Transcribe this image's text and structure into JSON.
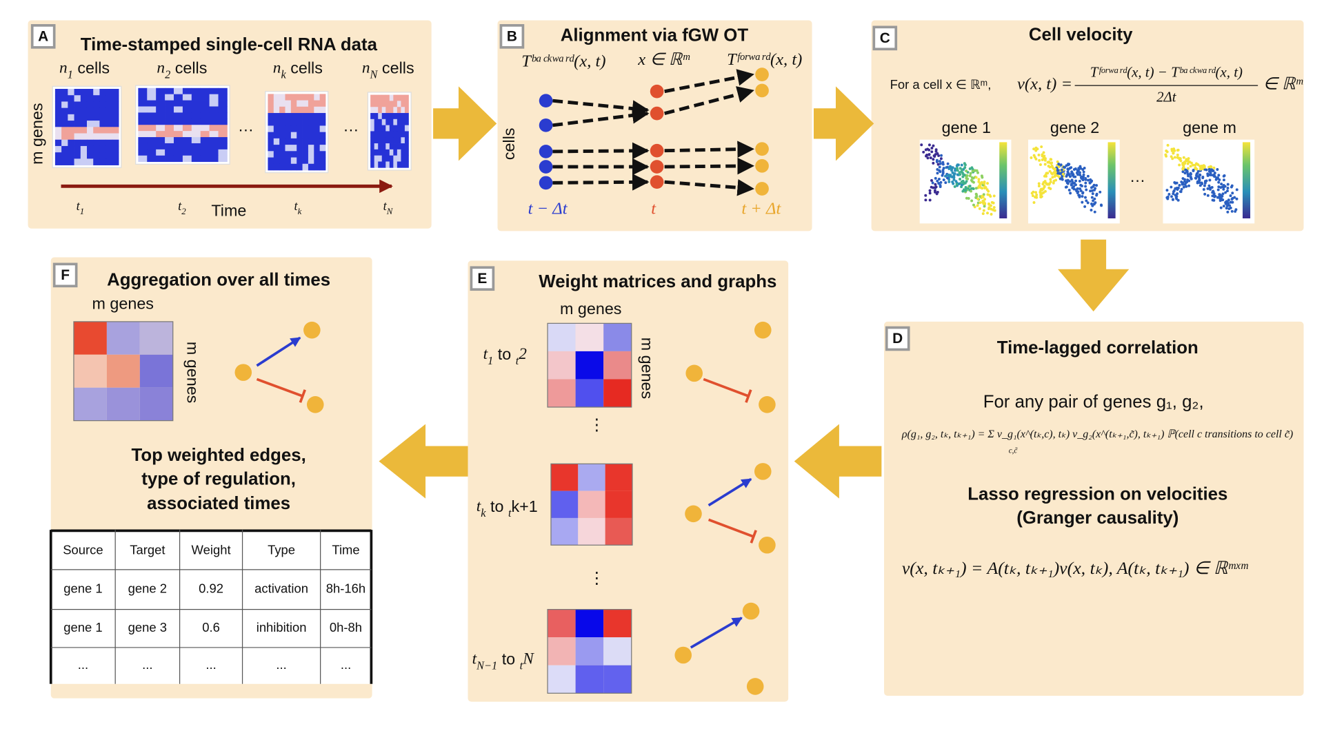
{
  "panels": {
    "A": {
      "letter": "A",
      "title": "Time-stamped single-cell RNA data",
      "cells": [
        [
          "n",
          "1",
          " cells"
        ],
        [
          "n",
          "2",
          " cells"
        ],
        [
          "n",
          "k",
          " cells"
        ],
        [
          "n",
          "N",
          " cells"
        ]
      ],
      "genes": "m genes",
      "dots": [
        "…",
        "…"
      ],
      "time": "Time",
      "times": [
        [
          "t",
          "1"
        ],
        [
          "t",
          "2"
        ],
        [
          "t",
          "k"
        ],
        [
          "t",
          "N"
        ]
      ]
    },
    "B": {
      "letter": "B",
      "title": "Alignment via fGW OT",
      "backward": "Tᵇᵃᶜᵏʷᵃʳᵈ(x, t)",
      "space": "x ∈ ℝᵐ",
      "forward": "Tᶠᵒʳʷᵃʳᵈ(x, t)",
      "cells": "cells",
      "t_minus": "t − Δt",
      "t": "t",
      "t_plus": "t + Δt"
    },
    "C": {
      "letter": "C",
      "title": "Cell velocity",
      "intro": "For a cell x ∈ ℝᵐ,",
      "lhs": "v(x, t) =",
      "numerator": "Tᶠᵒʳʷᵃʳᵈ(x, t) − Tᵇᵃᶜᵏʷᵃʳᵈ(x, t)",
      "denominator": "2Δt",
      "rhs": "∈ ℝᵐ",
      "genes": [
        "gene 1",
        "gene 2",
        "gene m"
      ],
      "dots": "…"
    },
    "D": {
      "letter": "D",
      "title": "Time-lagged correlation",
      "pair": "For any pair of genes g₁, g₂,",
      "formula": "ρ(g₁, g₂, tₖ, tₖ₊₁) = Σ v_g₁(x^(tₖ,c), tₖ) v_g₂(x^(tₖ₊₁,c̃), tₖ₊₁) ℙ(cell c transitions to cell c̃)",
      "sum_index": "c,c̃",
      "lasso": "Lasso regression on velocities",
      "granger": "(Granger causality)",
      "equation": "v(x, tₖ₊₁) = A(tₖ, tₖ₊₁)v(x, tₖ),    A(tₖ, tₖ₊₁) ∈ ℝᵐˣᵐ"
    },
    "E": {
      "letter": "E",
      "title": "Weight matrices and graphs",
      "genes_top": "m genes",
      "genes_side": "m genes",
      "rows": [
        [
          "t",
          "1",
          " to ",
          "t",
          "2"
        ],
        [
          "t",
          "k",
          " to ",
          "t",
          "k+1"
        ],
        [
          "t",
          "N−1",
          " to ",
          "t",
          "N"
        ]
      ],
      "vdots": [
        "⋮",
        "⋮"
      ]
    },
    "F": {
      "letter": "F",
      "title": "Aggregation over all times",
      "genes_top": "m genes",
      "genes_side": "m genes",
      "summary": [
        "Top weighted edges,",
        "type of regulation,",
        "associated times"
      ],
      "table": {
        "header": [
          "Source",
          "Target",
          "Weight",
          "Type",
          "Time"
        ],
        "rows": [
          [
            "gene 1",
            "gene 2",
            "0.92",
            "activation",
            "8h-16h"
          ],
          [
            "gene 1",
            "gene 3",
            "0.6",
            "inhibition",
            "0h-8h"
          ],
          [
            "...",
            "...",
            "...",
            "...",
            "..."
          ]
        ]
      }
    }
  }
}
